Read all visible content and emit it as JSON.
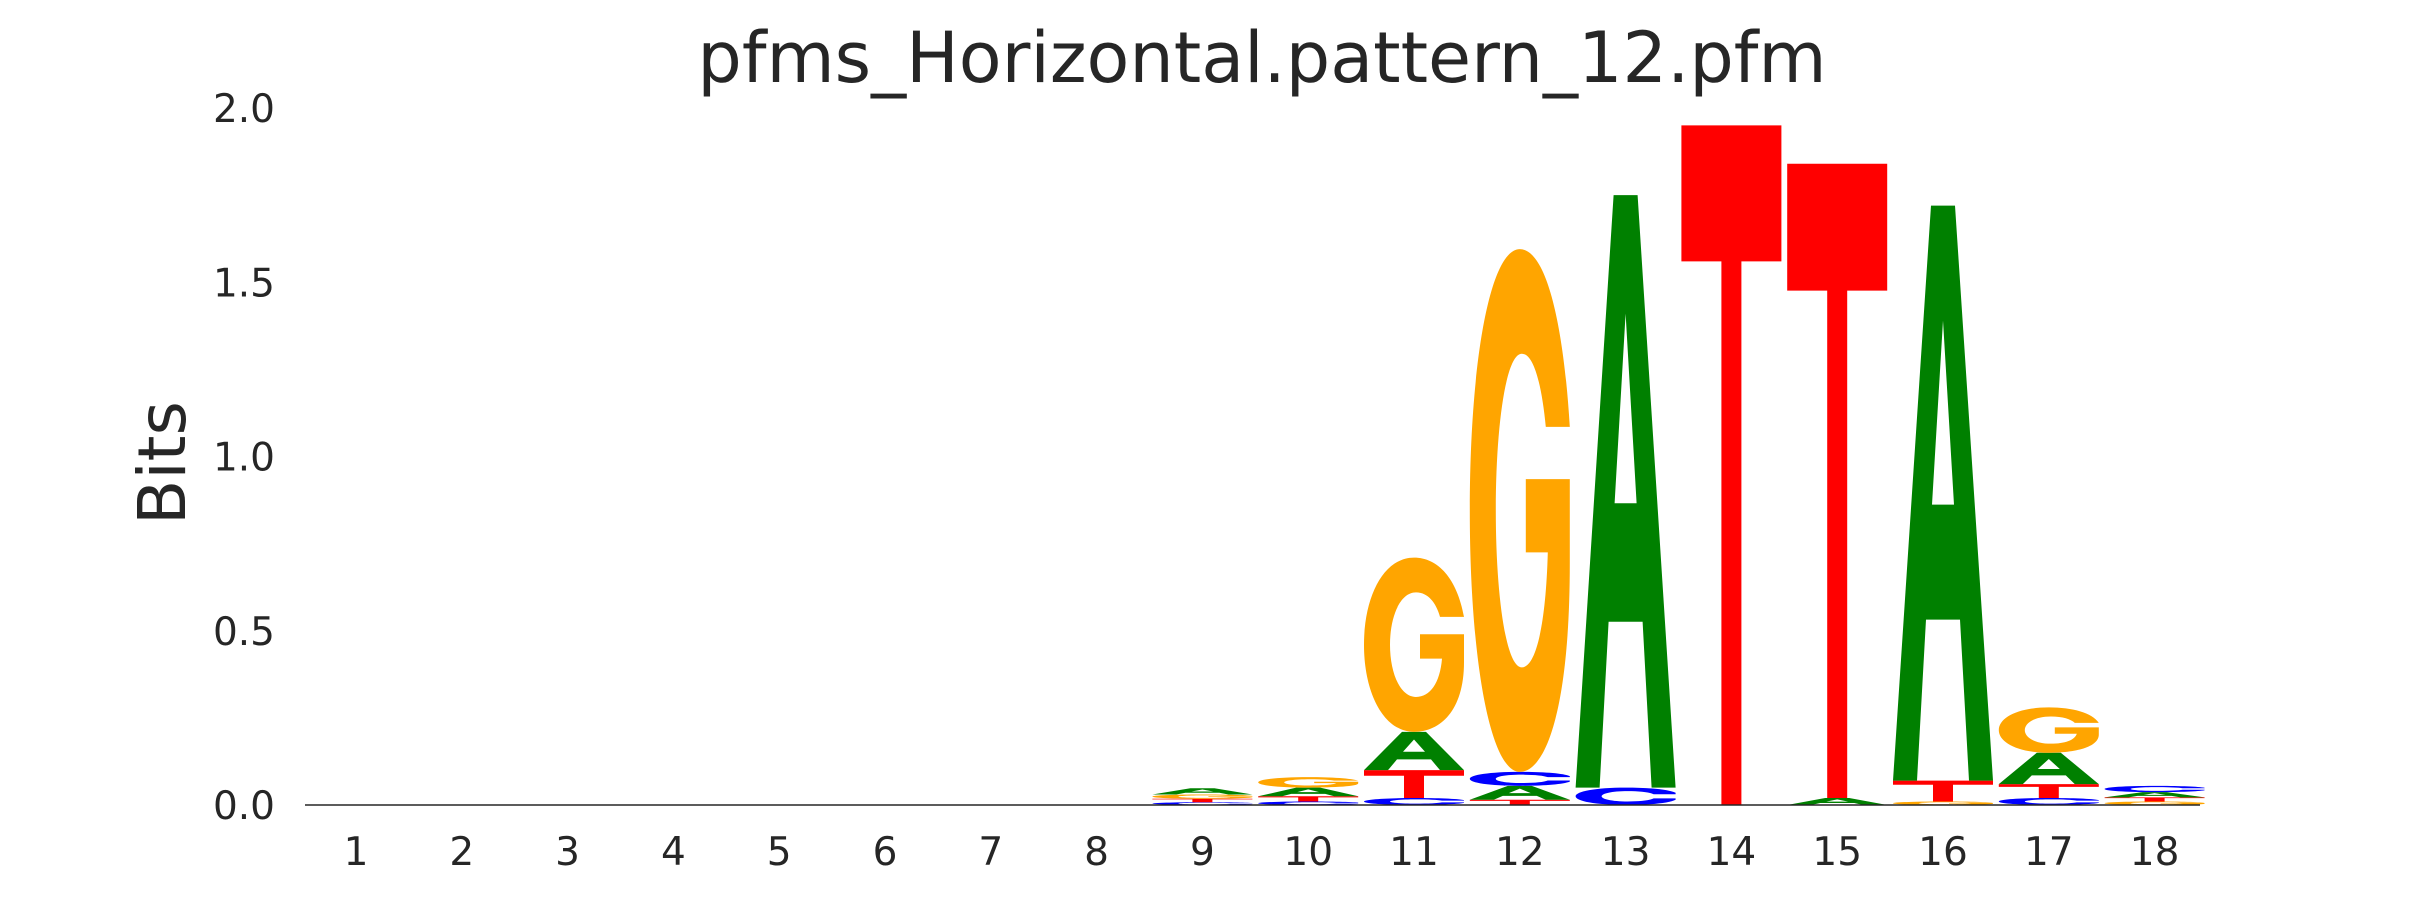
{
  "chart_data": {
    "type": "sequence_logo",
    "title": "pfms_Horizontal.pattern_12.pfm",
    "xlabel": "",
    "ylabel": "Bits",
    "ylim": [
      0,
      2.0
    ],
    "yticks": [
      "0.0",
      "0.5",
      "1.0",
      "1.5",
      "2.0"
    ],
    "grid": false,
    "colors": {
      "A": "#008000",
      "C": "#0000ff",
      "G": "#ffa500",
      "T": "#ff0000"
    },
    "positions": [
      {
        "label": "1",
        "letters": []
      },
      {
        "label": "2",
        "letters": []
      },
      {
        "label": "3",
        "letters": []
      },
      {
        "label": "4",
        "letters": []
      },
      {
        "label": "5",
        "letters": []
      },
      {
        "label": "6",
        "letters": []
      },
      {
        "label": "7",
        "letters": []
      },
      {
        "label": "8",
        "letters": []
      },
      {
        "label": "9",
        "letters": [
          {
            "base": "C",
            "bits": 0.008
          },
          {
            "base": "T",
            "bits": 0.01
          },
          {
            "base": "G",
            "bits": 0.012
          },
          {
            "base": "A",
            "bits": 0.018
          }
        ]
      },
      {
        "label": "10",
        "letters": [
          {
            "base": "C",
            "bits": 0.01
          },
          {
            "base": "T",
            "bits": 0.015
          },
          {
            "base": "A",
            "bits": 0.025
          },
          {
            "base": "G",
            "bits": 0.03
          }
        ]
      },
      {
        "label": "11",
        "letters": [
          {
            "base": "C",
            "bits": 0.02
          },
          {
            "base": "T",
            "bits": 0.08
          },
          {
            "base": "A",
            "bits": 0.11
          },
          {
            "base": "G",
            "bits": 0.5
          }
        ]
      },
      {
        "label": "12",
        "letters": [
          {
            "base": "T",
            "bits": 0.015
          },
          {
            "base": "A",
            "bits": 0.04
          },
          {
            "base": "C",
            "bits": 0.04
          },
          {
            "base": "G",
            "bits": 1.5
          }
        ]
      },
      {
        "label": "13",
        "letters": [
          {
            "base": "C",
            "bits": 0.05
          },
          {
            "base": "A",
            "bits": 1.7
          }
        ]
      },
      {
        "label": "14",
        "letters": [
          {
            "base": "T",
            "bits": 1.95
          }
        ]
      },
      {
        "label": "15",
        "letters": [
          {
            "base": "A",
            "bits": 0.02
          },
          {
            "base": "T",
            "bits": 1.82
          }
        ]
      },
      {
        "label": "16",
        "letters": [
          {
            "base": "G",
            "bits": 0.01
          },
          {
            "base": "T",
            "bits": 0.06
          },
          {
            "base": "A",
            "bits": 1.65
          }
        ]
      },
      {
        "label": "17",
        "letters": [
          {
            "base": "C",
            "bits": 0.02
          },
          {
            "base": "T",
            "bits": 0.04
          },
          {
            "base": "A",
            "bits": 0.09
          },
          {
            "base": "G",
            "bits": 0.13
          }
        ]
      },
      {
        "label": "18",
        "letters": [
          {
            "base": "G",
            "bits": 0.01
          },
          {
            "base": "T",
            "bits": 0.012
          },
          {
            "base": "A",
            "bits": 0.015
          },
          {
            "base": "C",
            "bits": 0.018
          }
        ]
      }
    ]
  }
}
